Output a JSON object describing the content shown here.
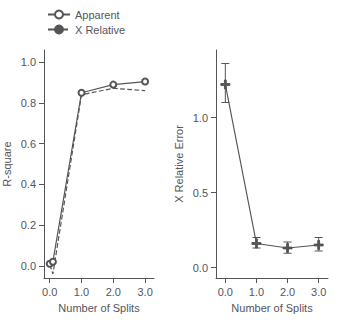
{
  "chart_data": [
    {
      "type": "line",
      "x": [
        0.0,
        0.1,
        1.0,
        2.0,
        3.0
      ],
      "series": [
        {
          "name": "Apparent",
          "color": "#555555",
          "values": [
            0.01,
            0.02,
            0.85,
            0.89,
            0.905
          ],
          "marker": "circle",
          "line_style": "solid"
        },
        {
          "name": "X Relative",
          "color": "#555555",
          "values": [
            0.005,
            -0.04,
            0.84,
            0.872,
            0.86
          ],
          "marker": "none",
          "line_style": "dashed"
        }
      ],
      "xlabel": "Number of Splits",
      "ylabel": "R-square",
      "xlim": [
        -0.18,
        3.28
      ],
      "ylim": [
        -0.06,
        1.06
      ],
      "xticks": [
        {
          "value": 0.0,
          "label": "0.0"
        },
        {
          "value": 1.0,
          "label": "1.0"
        },
        {
          "value": 2.0,
          "label": "2.0"
        },
        {
          "value": 3.0,
          "label": "3.0"
        }
      ],
      "yticks": [
        {
          "value": 0.0,
          "label": "0.0"
        },
        0.2,
        0.4,
        0.6,
        0.8,
        {
          "value": 1.0,
          "label": "1.0"
        }
      ],
      "legend": "upper left",
      "grid": false
    },
    {
      "type": "errorbar",
      "x": [
        0.0,
        1.0,
        2.0,
        3.0
      ],
      "series": [
        {
          "color": "#555555",
          "values": [
            1.22,
            0.16,
            0.13,
            0.15
          ],
          "error_low": [
            0.12,
            0.03,
            0.035,
            0.04
          ],
          "error_high": [
            0.14,
            0.04,
            0.04,
            0.05
          ],
          "marker": "plus",
          "line_style": "solid"
        }
      ],
      "xlabel": "Number of Splits",
      "ylabel": "X Relative Error",
      "xlim": [
        -0.3,
        3.3
      ],
      "ylim": [
        -0.07,
        1.45
      ],
      "xticks": [
        {
          "value": 0.0,
          "label": "0.0"
        },
        {
          "value": 1.0,
          "label": "1.0"
        },
        {
          "value": 2.0,
          "label": "2.0"
        },
        {
          "value": 3.0,
          "label": "3.0"
        }
      ],
      "yticks": [
        {
          "value": 0.0,
          "label": "0.0"
        },
        0.5,
        {
          "value": 1.0,
          "label": "1.0"
        }
      ],
      "grid": false
    }
  ]
}
